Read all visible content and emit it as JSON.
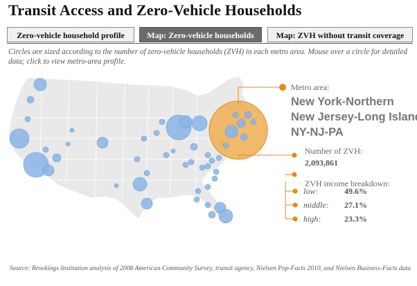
{
  "title": "Transit Access and Zero-Vehicle Households",
  "tabs": [
    {
      "label": "Zero-vehicle household profile",
      "active": false
    },
    {
      "label": "Map: Zero-vehicle households",
      "active": true
    },
    {
      "label": "Map:  ZVH without transit coverage",
      "active": false
    }
  ],
  "description": "Circles are sized according to the number of zero-vehicle households (ZVH) in each metro area. Mouse over a circle for detailed data; click to view metro-area profile.",
  "info": {
    "metro_label": "Metro area:",
    "metro_name_lines": [
      "New York-Northern",
      "New Jersey-Long Island,",
      "NY-NJ-PA"
    ],
    "zvh_label": "Number of ZVH:",
    "zvh_value": "2,093,861",
    "income_label": "ZVH income breakdown:",
    "income": [
      {
        "label": "low:",
        "value": "49.6%"
      },
      {
        "label": "middle:",
        "value": "27.1%"
      },
      {
        "label": "high:",
        "value": "23.3%"
      }
    ]
  },
  "colors": {
    "circle_fill": "#8ab4e8",
    "circle_stroke": "#6f9fdc",
    "highlight_fill": "#f0b15a",
    "highlight_stroke": "#e08a1e",
    "callout": "#e8891c",
    "land": "#e9e9e9",
    "active_tab": "#6b6b6b"
  },
  "source": "Source: Brookings Institution analysis of 2008 American Community Survey, transit agency, Nielsen Pop-Facts 2010, and Nielsen Business-Facts data"
}
